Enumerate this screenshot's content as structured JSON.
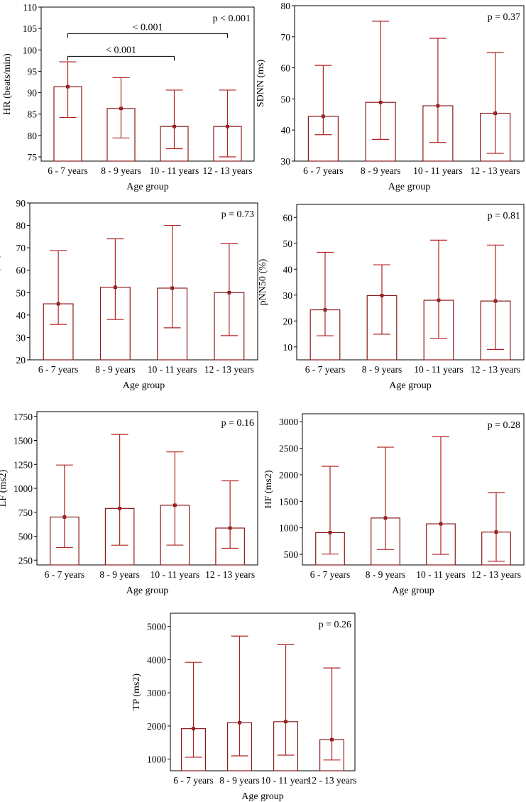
{
  "chart_data": [
    {
      "type": "bar",
      "ylabel": "HR (beats/min)",
      "xlabel": "Age group",
      "categories": [
        "6 - 7 years",
        "8 - 9 years",
        "10 - 11 years",
        "12 - 13 years"
      ],
      "values": [
        91.4,
        86.3,
        82.1,
        82.1
      ],
      "err_low": [
        84.2,
        79.4,
        76.9,
        75.0
      ],
      "err_high": [
        97.2,
        93.5,
        90.6,
        90.6
      ],
      "ylim": [
        74,
        110
      ],
      "yticks": [
        75,
        80,
        85,
        90,
        95,
        100,
        105,
        110
      ],
      "pvalue": "p < 0.001",
      "comparisons": [
        {
          "from": 0,
          "to": 2,
          "y": 98.5,
          "label": "< 0.001"
        },
        {
          "from": 0,
          "to": 3,
          "y": 103.8,
          "label": "< 0.001"
        }
      ]
    },
    {
      "type": "bar",
      "ylabel": "SDNN (ms)",
      "xlabel": "Age group",
      "categories": [
        "6 - 7 years",
        "8 - 9 years",
        "10 - 11 years",
        "12 - 13 years"
      ],
      "values": [
        44.4,
        48.9,
        47.8,
        45.4
      ],
      "err_low": [
        38.5,
        37.0,
        36.0,
        32.5
      ],
      "err_high": [
        60.8,
        75.0,
        69.5,
        64.9
      ],
      "ylim": [
        30,
        80
      ],
      "yticks": [
        30,
        40,
        50,
        60,
        70,
        80
      ],
      "pvalue": "p = 0.37"
    },
    {
      "type": "bar",
      "ylabel": "RMSSD (ms)",
      "xlabel": "Age group",
      "categories": [
        "6 - 7 years",
        "8 - 9 years",
        "10 - 11 years",
        "12 - 13 years"
      ],
      "values": [
        45.0,
        52.4,
        52.0,
        50.0
      ],
      "err_low": [
        35.8,
        38.0,
        34.3,
        30.8
      ],
      "err_high": [
        68.7,
        74.0,
        80.0,
        71.8
      ],
      "ylim": [
        20,
        90
      ],
      "yticks": [
        20,
        30,
        40,
        50,
        60,
        70,
        80,
        90
      ],
      "pvalue": "p = 0.73"
    },
    {
      "type": "bar",
      "ylabel": "pNN50 (%)",
      "xlabel": "Age group",
      "categories": [
        "6 - 7 years",
        "8 - 9 years",
        "10 - 11 years",
        "12 - 13 years"
      ],
      "values": [
        24.3,
        29.8,
        28.0,
        27.7
      ],
      "err_low": [
        14.3,
        14.9,
        13.3,
        9.0
      ],
      "err_high": [
        46.5,
        41.7,
        51.2,
        49.3
      ],
      "ylim": [
        5,
        65
      ],
      "yticks": [
        10,
        20,
        30,
        40,
        50,
        60
      ],
      "pvalue": "p = 0.81"
    },
    {
      "type": "bar",
      "ylabel": "LF (ms2)",
      "xlabel": "Age group",
      "categories": [
        "6 - 7 years",
        "8 - 9 years",
        "10 - 11 years",
        "12 - 13 years"
      ],
      "values": [
        700,
        790,
        823,
        585
      ],
      "err_low": [
        382,
        406,
        407,
        374
      ],
      "err_high": [
        1243,
        1563,
        1380,
        1078
      ],
      "ylim": [
        200,
        1800
      ],
      "yticks": [
        250,
        500,
        750,
        1000,
        1250,
        1500,
        1750
      ],
      "pvalue": "p = 0.16"
    },
    {
      "type": "bar",
      "ylabel": "HF (ms2)",
      "xlabel": "Age group",
      "categories": [
        "6 - 7 years",
        "8 - 9 years",
        "10 - 11 years",
        "12 - 13 years"
      ],
      "values": [
        910,
        1185,
        1075,
        920
      ],
      "err_low": [
        505,
        590,
        500,
        370
      ],
      "err_high": [
        2160,
        2520,
        2720,
        1665
      ],
      "ylim": [
        300,
        3150
      ],
      "yticks": [
        500,
        1000,
        1500,
        2000,
        2500,
        3000
      ],
      "pvalue": "p = 0.28"
    },
    {
      "type": "bar",
      "ylabel": "TP (ms2)",
      "xlabel": "Age group",
      "categories": [
        "6 - 7 years",
        "8 - 9 years",
        "10 - 11 years",
        "12 - 13 years"
      ],
      "values": [
        1920,
        2100,
        2130,
        1590
      ],
      "err_low": [
        1060,
        1100,
        1120,
        975
      ],
      "err_high": [
        3920,
        4710,
        4450,
        3750
      ],
      "ylim": [
        650,
        5400
      ],
      "yticks": [
        1000,
        2000,
        3000,
        4000,
        5000
      ],
      "pvalue": "p = 0.26"
    }
  ]
}
